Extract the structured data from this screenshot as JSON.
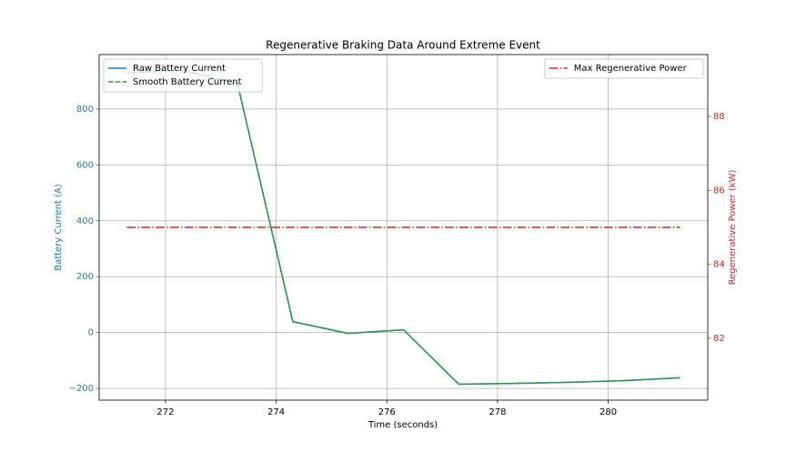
{
  "chart_data": {
    "type": "line",
    "title": "Regenerative Braking Data Around Extreme Event",
    "xlabel": "Time (seconds)",
    "ylabel": "Battery Current (A)",
    "y2label": "Regenerative Power (kW)",
    "x": [
      271.3,
      272.3,
      273.3,
      274.3,
      275.3,
      276.3,
      277.3,
      278.3,
      279.3,
      280.3,
      281.3
    ],
    "series": [
      {
        "name": "Raw Battery Current",
        "color": "#1f77b4",
        "style": "solid",
        "values": [
          930,
          939,
          891,
          39,
          -3,
          10,
          -185,
          -182,
          -178,
          -172,
          -162
        ]
      },
      {
        "name": "Smooth Battery Current",
        "color": "#2ca02c",
        "style": "dashed",
        "values": [
          930,
          939,
          891,
          39,
          -3,
          10,
          -185,
          -182,
          -178,
          -172,
          -162
        ]
      },
      {
        "name": "Max Regenerative Power",
        "color": "#d62728",
        "style": "dashdot",
        "axis": "y2",
        "values": [
          85,
          85,
          85,
          85,
          85,
          85,
          85,
          85,
          85,
          85,
          85
        ]
      }
    ],
    "xlim": [
      270.8,
      281.8
    ],
    "xticks": [
      272,
      274,
      276,
      278,
      280
    ],
    "ylim": [
      -242,
      995
    ],
    "yticks": [
      {
        "value": -200,
        "label": "−200"
      },
      0,
      200,
      400,
      600,
      800
    ],
    "y2lim": [
      80.325,
      89.675
    ],
    "y2ticks": [
      82,
      84,
      86,
      88
    ],
    "ycolor": "#1f77b4",
    "y2color": "#d62728",
    "grid": true,
    "legend": "upper left",
    "legend2": "upper right"
  }
}
